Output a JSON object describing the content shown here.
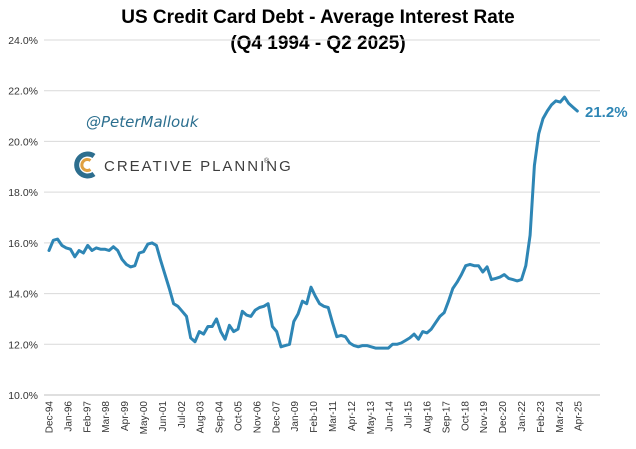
{
  "chart_data": {
    "type": "line",
    "title": "US Credit Card Debt - Average Interest Rate",
    "subtitle": "(Q4 1994 - Q2 2025)",
    "xlabel": "",
    "ylabel": "",
    "ylim": [
      10,
      24
    ],
    "yticks": [
      "10.0%",
      "12.0%",
      "14.0%",
      "16.0%",
      "18.0%",
      "20.0%",
      "22.0%",
      "24.0%"
    ],
    "xticks": [
      "Dec-94",
      "Jan-96",
      "Feb-97",
      "Mar-98",
      "Apr-99",
      "May-00",
      "Jun-01",
      "Jul-02",
      "Aug-03",
      "Sep-04",
      "Oct-05",
      "Nov-06",
      "Dec-07",
      "Jan-09",
      "Feb-10",
      "Mar-11",
      "Apr-12",
      "May-13",
      "Jun-14",
      "Jul-15",
      "Aug-16",
      "Sep-17",
      "Oct-18",
      "Nov-19",
      "Dec-20",
      "Jan-22",
      "Feb-23",
      "Mar-24",
      "Apr-25"
    ],
    "points_per_tick": 4.4,
    "line_color": "#2e86b5",
    "grid": true,
    "series": [
      {
        "name": "Average Interest Rate",
        "values": [
          15.7,
          16.1,
          16.15,
          15.9,
          15.8,
          15.75,
          15.45,
          15.7,
          15.6,
          15.9,
          15.7,
          15.8,
          15.75,
          15.75,
          15.7,
          15.85,
          15.7,
          15.35,
          15.15,
          15.05,
          15.1,
          15.6,
          15.65,
          15.95,
          16.0,
          15.9,
          15.3,
          14.75,
          14.2,
          13.6,
          13.5,
          13.3,
          13.1,
          12.25,
          12.1,
          12.5,
          12.4,
          12.7,
          12.7,
          13.0,
          12.5,
          12.2,
          12.75,
          12.5,
          12.6,
          13.3,
          13.15,
          13.1,
          13.35,
          13.45,
          13.5,
          13.6,
          12.7,
          12.5,
          11.9,
          11.95,
          12.0,
          12.9,
          13.2,
          13.7,
          13.6,
          14.25,
          13.9,
          13.6,
          13.5,
          13.45,
          12.85,
          12.3,
          12.35,
          12.3,
          12.05,
          11.95,
          11.9,
          11.95,
          11.95,
          11.9,
          11.85,
          11.85,
          11.85,
          11.85,
          12.0,
          12.0,
          12.05,
          12.15,
          12.25,
          12.4,
          12.2,
          12.5,
          12.45,
          12.6,
          12.85,
          13.1,
          13.25,
          13.7,
          14.2,
          14.45,
          14.75,
          15.1,
          15.15,
          15.1,
          15.1,
          14.85,
          15.05,
          14.55,
          14.6,
          14.65,
          14.75,
          14.6,
          14.55,
          14.5,
          14.55,
          15.1,
          16.3,
          19.05,
          20.3,
          20.9,
          21.2,
          21.45,
          21.6,
          21.55,
          21.75,
          21.5,
          21.35,
          21.2
        ]
      }
    ],
    "annotations": {
      "end_label": "21.2%",
      "handle": "@PeterMallouk",
      "brand": "CREATIVE PLANNING",
      "brand_mark": "®"
    }
  }
}
